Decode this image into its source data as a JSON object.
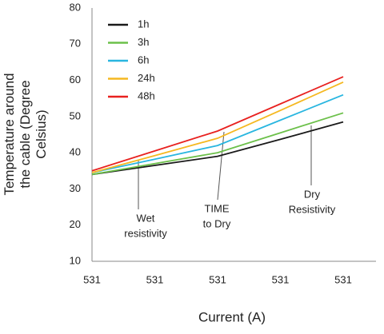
{
  "chart_data": {
    "type": "line",
    "x_label": "Current (A)",
    "y_label_lines": [
      "Temperature around",
      "the cable (Degree",
      "Celsius)"
    ],
    "categories": [
      "531",
      "531",
      "531",
      "531",
      "531"
    ],
    "series": [
      {
        "name": "1h",
        "color": "#1a1a1a",
        "values": [
          34,
          36.5,
          39,
          43.7,
          48.5
        ]
      },
      {
        "name": "3h",
        "color": "#6cc04a",
        "values": [
          34,
          37,
          40,
          45.5,
          51
        ]
      },
      {
        "name": "6h",
        "color": "#29b6e0",
        "values": [
          34.5,
          38.2,
          42,
          49,
          56
        ]
      },
      {
        "name": "24h",
        "color": "#f5b820",
        "values": [
          34.5,
          39.2,
          44,
          51.7,
          59.5
        ]
      },
      {
        "name": "48h",
        "color": "#e8211f",
        "values": [
          35,
          40.5,
          46,
          53.5,
          61
        ]
      }
    ],
    "ylim": [
      10,
      80
    ],
    "yticks": [
      10,
      20,
      30,
      40,
      50,
      60,
      70,
      80
    ],
    "legend": "top-left",
    "annotations": [
      {
        "lines": [
          "Wet",
          "resistivity"
        ]
      },
      {
        "lines": [
          "TIME",
          "to Dry"
        ]
      },
      {
        "lines": [
          "Dry",
          "Resistivity"
        ]
      }
    ]
  }
}
